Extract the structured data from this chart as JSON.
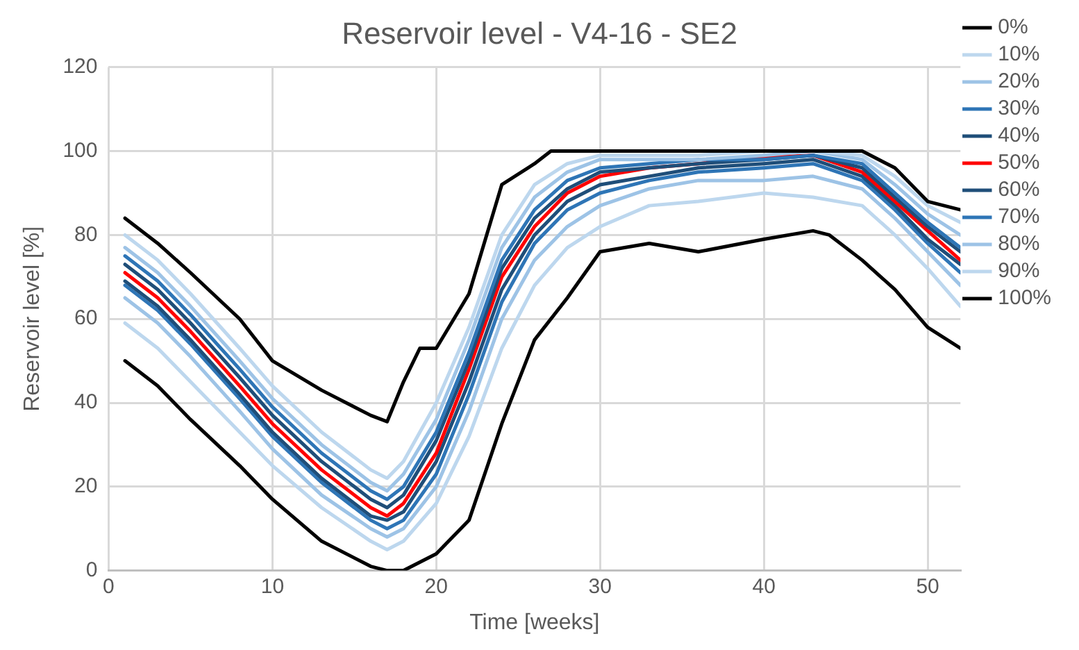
{
  "chart_data": {
    "type": "line",
    "title": "Reservoir level - V4-16 - SE2",
    "xlabel": "Time [weeks]",
    "ylabel": "Reservoir level [%]",
    "x": [
      1,
      3,
      5,
      8,
      10,
      13,
      16,
      17,
      18,
      20,
      22,
      24,
      26,
      28,
      30,
      33,
      36,
      40,
      43,
      46,
      48,
      50,
      52
    ],
    "xlim": [
      0,
      52
    ],
    "xticks": [
      0,
      10,
      20,
      30,
      40,
      50
    ],
    "ylim": [
      0,
      120
    ],
    "yticks": [
      0,
      20,
      40,
      60,
      80,
      100,
      120
    ],
    "grid": true,
    "legend": "right",
    "marker": "none",
    "line_style": "solid",
    "series": [
      {
        "name": "0%",
        "color": "#000000",
        "x": [
          1,
          3,
          5,
          8,
          10,
          13,
          16,
          17,
          18,
          19,
          20,
          22,
          24,
          26,
          27,
          30,
          35,
          40,
          46,
          48,
          50,
          52
        ],
        "values": [
          84,
          78,
          71,
          60,
          50,
          43,
          37,
          35.5,
          45,
          53,
          53,
          66,
          92,
          97,
          100,
          100,
          100,
          100,
          100,
          96,
          88,
          86
        ]
      },
      {
        "name": "10%",
        "color": "#bdd7ee",
        "values": [
          80,
          74,
          66,
          53,
          44,
          33,
          24,
          22,
          26,
          40,
          58,
          80,
          92,
          97,
          99,
          99,
          99,
          100,
          100,
          99,
          94,
          87,
          83
        ]
      },
      {
        "name": "20%",
        "color": "#9dc3e6",
        "values": [
          77,
          71,
          63,
          50,
          41,
          30,
          21,
          19,
          23,
          36,
          55,
          77,
          89,
          95,
          98,
          98,
          98,
          99,
          100,
          98,
          92,
          85,
          80
        ]
      },
      {
        "name": "30%",
        "color": "#2e75b6",
        "values": [
          75,
          69,
          61,
          48,
          39,
          28,
          19,
          17,
          20,
          33,
          52,
          74,
          86,
          93,
          96,
          97,
          98,
          98,
          99,
          97,
          90,
          83,
          77
        ]
      },
      {
        "name": "40%",
        "color": "#1f4e79",
        "values": [
          73,
          67,
          59,
          46,
          37,
          26,
          17,
          15,
          18,
          31,
          50,
          72,
          84,
          91,
          95,
          96,
          97,
          98,
          99,
          96,
          89,
          82,
          76
        ]
      },
      {
        "name": "50%",
        "color": "#ff0000",
        "values": [
          71,
          65,
          57,
          44,
          35,
          24,
          15,
          13,
          16,
          28,
          48,
          70,
          82,
          90,
          94,
          96,
          97,
          98.5,
          99,
          95,
          88,
          81,
          74
        ]
      },
      {
        "name": "60%",
        "color": "#1f4e79",
        "values": [
          69,
          63,
          55,
          42,
          33,
          22,
          13,
          12,
          14,
          26,
          45,
          67,
          80,
          88,
          92,
          94,
          96,
          97,
          98,
          94,
          87,
          79,
          73
        ]
      },
      {
        "name": "70%",
        "color": "#2e75b6",
        "values": [
          68,
          62,
          54,
          41,
          32,
          21,
          12,
          10,
          12,
          23,
          42,
          64,
          78,
          86,
          90,
          93,
          95,
          96,
          97,
          93,
          86,
          78,
          71
        ]
      },
      {
        "name": "80%",
        "color": "#9dc3e6",
        "values": [
          65,
          59,
          51,
          38,
          29,
          18,
          10,
          8,
          10,
          20,
          38,
          60,
          74,
          82,
          87,
          91,
          93,
          93,
          94,
          91,
          84,
          76,
          68
        ]
      },
      {
        "name": "90%",
        "color": "#bdd7ee",
        "values": [
          59,
          53,
          45,
          33,
          25,
          15,
          7,
          5,
          7,
          16,
          32,
          53,
          68,
          77,
          82,
          87,
          88,
          90,
          89,
          87,
          80,
          72,
          63
        ]
      },
      {
        "name": "100%",
        "color": "#000000",
        "x": [
          1,
          3,
          5,
          8,
          10,
          13,
          16,
          17,
          18,
          20,
          22,
          24,
          26,
          28,
          30,
          33,
          36,
          40,
          43,
          44,
          46,
          48,
          50,
          52
        ],
        "values": [
          50,
          44,
          36,
          25,
          17,
          7,
          1,
          0,
          0,
          4,
          12,
          35,
          55,
          65,
          76,
          78,
          76,
          79,
          81,
          80,
          74,
          67,
          58,
          53
        ]
      }
    ]
  }
}
